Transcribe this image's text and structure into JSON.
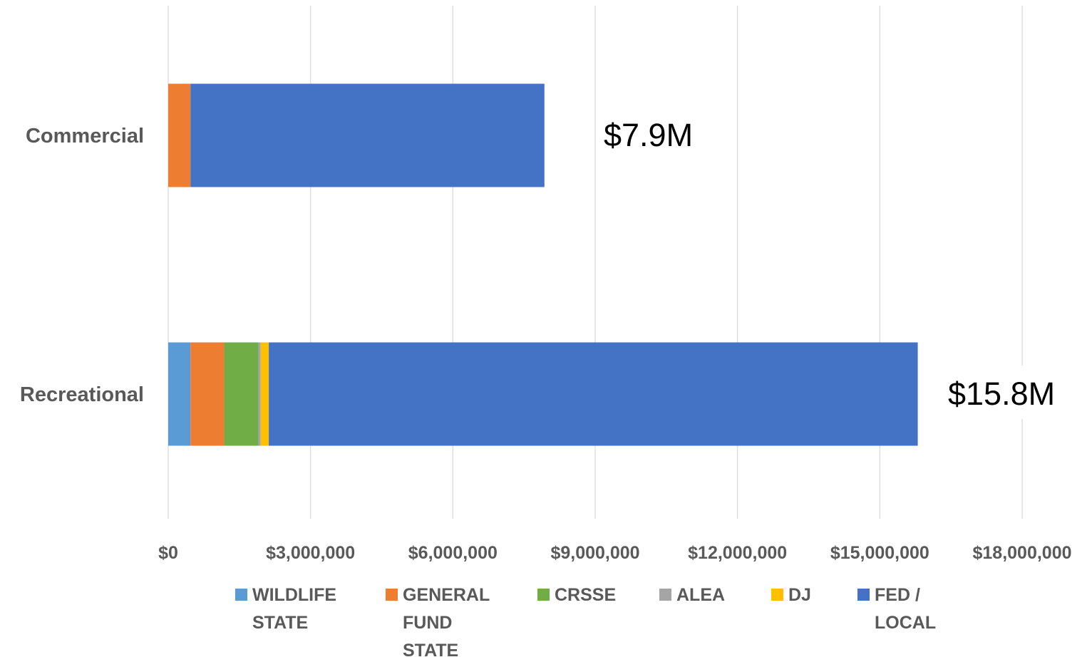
{
  "chart_data": {
    "type": "bar",
    "orientation": "horizontal",
    "stacked": true,
    "categories": [
      "Commercial",
      "Recreational"
    ],
    "series": [
      {
        "name": "WILDLIFE STATE",
        "color": "#5B9BD5",
        "values": [
          0,
          470000
        ]
      },
      {
        "name": "GENERAL FUND STATE",
        "color": "#ED7D31",
        "values": [
          470000,
          710000
        ]
      },
      {
        "name": "CRSSE",
        "color": "#70AD47",
        "values": [
          0,
          720000
        ]
      },
      {
        "name": "ALEA",
        "color": "#A5A5A5",
        "values": [
          0,
          50000
        ]
      },
      {
        "name": "DJ",
        "color": "#FFC000",
        "values": [
          0,
          170000
        ]
      },
      {
        "name": "FED / LOCAL",
        "color": "#4472C4",
        "values": [
          7460000,
          13680000
        ]
      }
    ],
    "totals": [
      "$7.9M",
      "$15.8M"
    ],
    "xlim": [
      0,
      18000000
    ],
    "xticks": [
      0,
      3000000,
      6000000,
      9000000,
      12000000,
      15000000,
      18000000
    ],
    "xtick_labels": [
      "$0",
      "$3,000,000",
      "$6,000,000",
      "$9,000,000",
      "$12,000,000",
      "$15,000,000",
      "$18,000,000"
    ],
    "grid": true,
    "legend_position": "bottom",
    "legend_lines": [
      [
        "WILDLIFE",
        "STATE"
      ],
      [
        "GENERAL",
        "FUND",
        "STATE"
      ],
      [
        "CRSSE"
      ],
      [
        "ALEA"
      ],
      [
        "DJ"
      ],
      [
        "FED /",
        "LOCAL"
      ]
    ]
  }
}
